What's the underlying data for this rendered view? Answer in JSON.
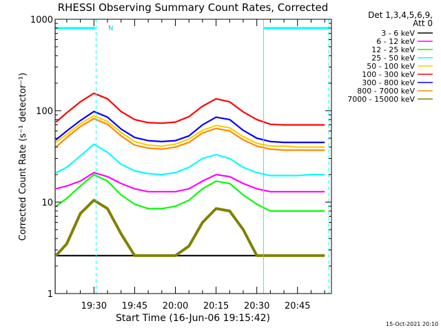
{
  "chart_data": {
    "type": "line",
    "title": "RHESSI Observing Summary Count Rates, Corrected",
    "xlabel": "Start Time (16-Jun-06 19:15:42)",
    "ylabel": "Corrected Count Rate (s⁻¹ detector⁻¹)",
    "yscale": "log",
    "ylim": [
      1,
      1000
    ],
    "xlim_minutes_after_1915": [
      0.7,
      102.5
    ],
    "x_ticks": [
      {
        "label": "19:30",
        "t": 15
      },
      {
        "label": "19:45",
        "t": 30
      },
      {
        "label": "20:00",
        "t": 45
      },
      {
        "label": "20:15",
        "t": 60
      },
      {
        "label": "20:30",
        "t": 75
      },
      {
        "label": "20:45",
        "t": 90
      }
    ],
    "y_ticks": [
      {
        "label": "1",
        "v": 1
      },
      {
        "label": "10",
        "v": 10
      },
      {
        "label": "100",
        "v": 100
      },
      {
        "label": "1000",
        "v": 1000
      }
    ],
    "detectors": "Det 1,3,4,5,6,9,",
    "attenuator": "Att 0",
    "timestamp": "15-Oct-2021 20:10",
    "night_marker_label": "N",
    "grid": false,
    "legend_position": "right",
    "series": [
      {
        "name": "3 - 6 keV",
        "color": "#000000",
        "x": [
          1,
          5,
          10,
          15,
          20,
          25,
          30,
          35,
          40,
          45,
          50,
          55,
          60,
          65,
          70,
          75,
          80,
          85,
          90,
          95,
          100
        ],
        "values": [
          2.6,
          2.6,
          2.6,
          2.6,
          2.6,
          2.6,
          2.6,
          2.6,
          2.6,
          2.6,
          2.6,
          2.6,
          2.6,
          2.6,
          2.6,
          2.6,
          2.6,
          2.6,
          2.6,
          2.6,
          2.6
        ]
      },
      {
        "name": "6 - 12 keV",
        "color": "#ff00ff",
        "x": [
          1,
          5,
          10,
          15,
          20,
          25,
          30,
          35,
          40,
          45,
          50,
          55,
          60,
          65,
          70,
          75,
          80,
          85,
          90,
          95,
          100
        ],
        "values": [
          14,
          15,
          17,
          21,
          19,
          16,
          14,
          13,
          13,
          13,
          14,
          17,
          20,
          19,
          16,
          14,
          13,
          13,
          13,
          13,
          13
        ]
      },
      {
        "name": "12 - 25 keV",
        "color": "#00ff00",
        "x": [
          1,
          5,
          10,
          15,
          20,
          25,
          30,
          35,
          40,
          45,
          50,
          55,
          60,
          65,
          70,
          75,
          80,
          85,
          90,
          95,
          100
        ],
        "values": [
          9,
          11,
          15,
          20,
          17,
          12,
          9.5,
          8.5,
          8.5,
          9,
          10.5,
          14,
          17,
          16,
          12,
          9.5,
          8,
          8,
          8,
          8,
          8
        ]
      },
      {
        "name": "25 - 50 keV",
        "color": "#00ffff",
        "x": [
          1,
          5,
          10,
          15,
          20,
          25,
          30,
          35,
          40,
          45,
          50,
          55,
          60,
          65,
          70,
          75,
          80,
          85,
          90,
          95,
          100
        ],
        "values": [
          21,
          24,
          32,
          43,
          35,
          26,
          22,
          20.5,
          20,
          21,
          24,
          30,
          33,
          30,
          24,
          21,
          19.5,
          19.5,
          19.5,
          20,
          20
        ]
      },
      {
        "name": "50 - 100 keV",
        "color": "#ffcc00",
        "x": [
          1,
          5,
          10,
          15,
          20,
          25,
          30,
          35,
          40,
          45,
          50,
          55,
          60,
          65,
          70,
          75,
          80,
          85,
          90,
          95,
          100
        ],
        "values": [
          45,
          55,
          72,
          88,
          76,
          58,
          46,
          42,
          41,
          43,
          49,
          61,
          69,
          65,
          52,
          44,
          41,
          41,
          40,
          40,
          40
        ]
      },
      {
        "name": "100 - 300 keV",
        "color": "#ff0000",
        "x": [
          1,
          5,
          10,
          15,
          20,
          25,
          30,
          35,
          40,
          45,
          50,
          55,
          60,
          65,
          70,
          75,
          80,
          85,
          90,
          95,
          100
        ],
        "values": [
          75,
          95,
          125,
          155,
          135,
          98,
          80,
          74,
          73,
          75,
          86,
          112,
          135,
          125,
          97,
          80,
          71,
          70,
          70,
          70,
          70
        ]
      },
      {
        "name": "300 - 800 keV",
        "color": "#0000ff",
        "x": [
          1,
          5,
          10,
          15,
          20,
          25,
          30,
          35,
          40,
          45,
          50,
          55,
          60,
          65,
          70,
          75,
          80,
          85,
          90,
          95,
          100
        ],
        "values": [
          48,
          60,
          78,
          98,
          85,
          63,
          51,
          47,
          46,
          47,
          53,
          70,
          85,
          80,
          61,
          50,
          46,
          45,
          45,
          45,
          45
        ]
      },
      {
        "name": "800 - 7000 keV",
        "color": "#ff8800",
        "x": [
          1,
          5,
          10,
          15,
          20,
          25,
          30,
          35,
          40,
          45,
          50,
          55,
          60,
          65,
          70,
          75,
          80,
          85,
          90,
          95,
          100
        ],
        "values": [
          40,
          51,
          67,
          82,
          71,
          53,
          42,
          39,
          38,
          40,
          45,
          57,
          64,
          60,
          48,
          41,
          38,
          37,
          37,
          37,
          37
        ]
      },
      {
        "name": "7000 - 15000 keV",
        "color": "#808000",
        "x": [
          1,
          5,
          10,
          15,
          20,
          25,
          30,
          35,
          40,
          45,
          50,
          55,
          60,
          65,
          70,
          75,
          80,
          85,
          90,
          95,
          100
        ],
        "values": [
          2.6,
          3.5,
          7.5,
          10.5,
          8.5,
          4.5,
          2.6,
          2.6,
          2.6,
          2.6,
          3.3,
          6,
          8.5,
          8,
          5,
          2.6,
          2.6,
          2.6,
          2.6,
          2.6,
          2.6
        ]
      }
    ],
    "markers": {
      "color": "#00ffff",
      "solid_lines_t": [
        0.8,
        77.5
      ],
      "dashed_lines_t": [
        15.8,
        101.5
      ],
      "bars": [
        {
          "from_t": 0.8,
          "to_t": 15.5,
          "level": 800
        },
        {
          "from_t": 77.5,
          "to_t": 101.5,
          "level": 800
        }
      ]
    }
  }
}
